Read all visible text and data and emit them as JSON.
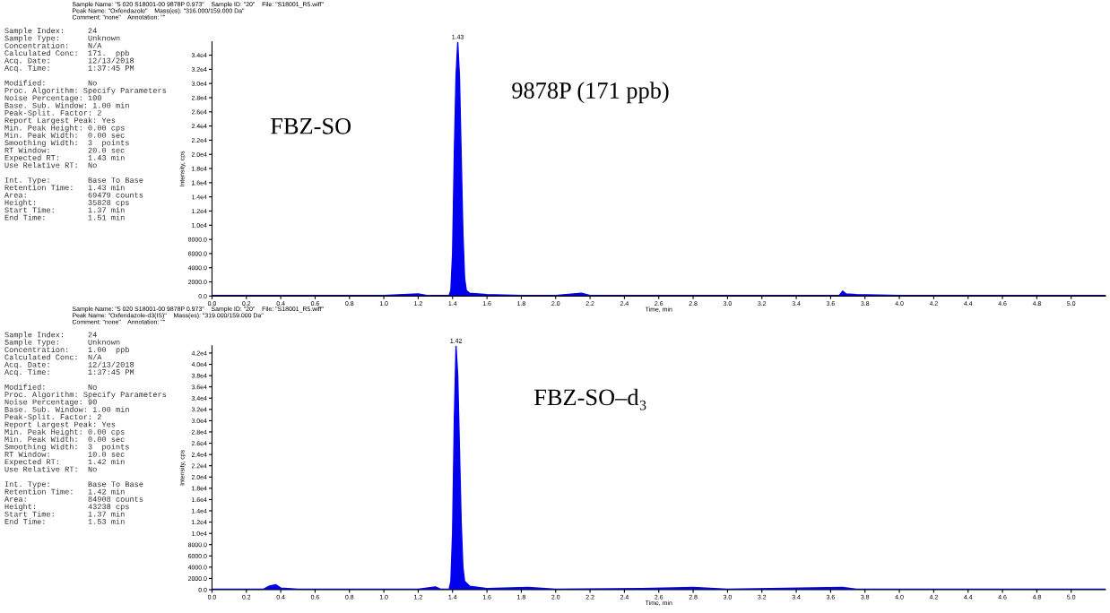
{
  "chart_data": [
    {
      "type": "area",
      "title": "Sample Name: \"5 020 S18001-00 9878P 0.973\"    Sample ID: \"20\"    File: \"S18001_R5.wiff\"\nPeak Name: \"Oxfendazole\"    Mass(es): \"316.000/159.000 Da\"\nComment: \"none\"    Annotation: \"\"",
      "xlabel": "Time, min",
      "ylabel": "Intensity, cps",
      "color": "#0000ee",
      "x": [
        0,
        0.1,
        0.2,
        0.4,
        0.6,
        0.8,
        1.0,
        1.2,
        1.25,
        1.38,
        1.39,
        1.4,
        1.41,
        1.42,
        1.43,
        1.44,
        1.45,
        1.46,
        1.47,
        1.48,
        1.5,
        1.6,
        1.8,
        2.0,
        2.15,
        2.2,
        2.5,
        3.0,
        3.5,
        3.65,
        3.67,
        3.69,
        3.75,
        4.0,
        4.5,
        5.0,
        5.2
      ],
      "values": [
        100,
        100,
        100,
        100,
        100,
        100,
        100,
        300,
        100,
        100,
        800,
        6000,
        20000,
        31000,
        35828,
        31000,
        20000,
        9000,
        2500,
        800,
        400,
        200,
        100,
        100,
        400,
        100,
        100,
        100,
        100,
        100,
        700,
        300,
        200,
        100,
        100,
        100,
        100
      ],
      "xlim": [
        0,
        5.2
      ],
      "ylim": [
        0,
        35900
      ],
      "xticks": [
        {
          "value": 0,
          "label": "0.0"
        },
        {
          "value": 0.2,
          "label": "0.2"
        },
        {
          "value": 0.4,
          "label": "0.4"
        },
        {
          "value": 0.6,
          "label": "0.6"
        },
        {
          "value": 0.8,
          "label": "0.8"
        },
        {
          "value": 1.0,
          "label": "1.0"
        },
        {
          "value": 1.2,
          "label": "1.2"
        },
        {
          "value": 1.4,
          "label": "1.4"
        },
        {
          "value": 1.6,
          "label": "1.6"
        },
        {
          "value": 1.8,
          "label": "1.8"
        },
        {
          "value": 2.0,
          "label": "2.0"
        },
        {
          "value": 2.2,
          "label": "2.2"
        },
        {
          "value": 2.4,
          "label": "2.4"
        },
        {
          "value": 2.6,
          "label": "2.6"
        },
        {
          "value": 2.8,
          "label": "2.8"
        },
        {
          "value": 3.0,
          "label": "3.0"
        },
        {
          "value": 3.2,
          "label": "3.2"
        },
        {
          "value": 3.4,
          "label": "3.4"
        },
        {
          "value": 3.6,
          "label": "3.6"
        },
        {
          "value": 3.8,
          "label": "3.8"
        },
        {
          "value": 4.0,
          "label": "4.0"
        },
        {
          "value": 4.2,
          "label": "4.2"
        },
        {
          "value": 4.4,
          "label": "4.4"
        },
        {
          "value": 4.6,
          "label": "4.6"
        },
        {
          "value": 4.8,
          "label": "4.8"
        },
        {
          "value": 5.0,
          "label": "5.0"
        }
      ],
      "yticks": [
        {
          "value": 0,
          "label": "0.0"
        },
        {
          "value": 2000,
          "label": "2000.0"
        },
        {
          "value": 4000,
          "label": "4000.0"
        },
        {
          "value": 6000,
          "label": "6000.0"
        },
        {
          "value": 8000,
          "label": "8000.0"
        },
        {
          "value": 10000,
          "label": "1.0e4"
        },
        {
          "value": 12000,
          "label": "1.2e4"
        },
        {
          "value": 14000,
          "label": "1.4e4"
        },
        {
          "value": 16000,
          "label": "1.6e4"
        },
        {
          "value": 18000,
          "label": "1.8e4"
        },
        {
          "value": 20000,
          "label": "2.0e4"
        },
        {
          "value": 22000,
          "label": "2.2e4"
        },
        {
          "value": 24000,
          "label": "2.4e4"
        },
        {
          "value": 26000,
          "label": "2.6e4"
        },
        {
          "value": 28000,
          "label": "2.8e4"
        },
        {
          "value": 30000,
          "label": "3.0e4"
        },
        {
          "value": 32000,
          "label": "3.2e4"
        },
        {
          "value": 34000,
          "label": "3.4e4"
        }
      ],
      "annotations": [
        "Sample Index:     24\nSample Type:      Unknown\nConcentration:    N/A\nCalculated Conc:  171.  ppb\nAcq. Date:        12/13/2018\nAcq. Time:        1:37:45 PM\n\nModified:         No\nProc. Algorithm: Specify Parameters\nNoise Percentage: 100\nBase. Sub. Window: 1.00 min\nPeak-Split. Factor: 2\nReport Largest Peak: Yes\nMin. Peak Height: 0.00 cps\nMin. Peak Width:  0.00 sec\nSmoothing Width:  3  points\nRT Window:        20.0 sec\nExpected RT:      1.43 min\nUse Relative RT:  No\n\nInt. Type:        Base To Base\nRetention Time:   1.43 min\nArea:             69479 counts\nHeight:           35828 cps\nStart Time:       1.37 min\nEnd Time:         1.51 min",
        "FBZ-SO",
        "9878P (171 ppb)",
        {
          "text": "1.43",
          "x": 1.43,
          "y": 35828
        }
      ]
    },
    {
      "type": "area",
      "title": "Sample Name: \"5 020 S18001-00 9878P 0.973\"    Sample ID: \"20\"    File: \"S18001_R5.wiff\"\nPeak Name: \"Oxfendazole-d3(IS)\"    Mass(es): \"319.000/159.000 Da\"\nComment: \"none\"    Annotation: \"\"",
      "xlabel": "Time, min",
      "ylabel": "Intensity, cps",
      "color": "#0000ee",
      "x": [
        0,
        0.2,
        0.3,
        0.33,
        0.37,
        0.4,
        0.5,
        0.8,
        1.2,
        1.3,
        1.33,
        1.38,
        1.39,
        1.4,
        1.41,
        1.42,
        1.43,
        1.44,
        1.45,
        1.46,
        1.47,
        1.5,
        1.6,
        1.84,
        2.0,
        2.5,
        2.8,
        3.0,
        3.67,
        3.75,
        4.0,
        4.5,
        5.0,
        5.2
      ],
      "values": [
        100,
        100,
        100,
        600,
        900,
        300,
        100,
        100,
        100,
        500,
        100,
        100,
        1500,
        10000,
        30000,
        43238,
        38000,
        25000,
        12000,
        4000,
        1500,
        600,
        200,
        400,
        100,
        200,
        400,
        100,
        400,
        100,
        100,
        100,
        100,
        100
      ],
      "xlim": [
        0,
        5.2
      ],
      "ylim": [
        0,
        43300
      ],
      "xticks": [
        {
          "value": 0,
          "label": "0.0"
        },
        {
          "value": 0.2,
          "label": "0.2"
        },
        {
          "value": 0.4,
          "label": "0.4"
        },
        {
          "value": 0.6,
          "label": "0.6"
        },
        {
          "value": 0.8,
          "label": "0.8"
        },
        {
          "value": 1.0,
          "label": "1.0"
        },
        {
          "value": 1.2,
          "label": "1.2"
        },
        {
          "value": 1.4,
          "label": "1.4"
        },
        {
          "value": 1.6,
          "label": "1.6"
        },
        {
          "value": 1.8,
          "label": "1.8"
        },
        {
          "value": 2.0,
          "label": "2.0"
        },
        {
          "value": 2.2,
          "label": "2.2"
        },
        {
          "value": 2.4,
          "label": "2.4"
        },
        {
          "value": 2.6,
          "label": "2.6"
        },
        {
          "value": 2.8,
          "label": "2.8"
        },
        {
          "value": 3.0,
          "label": "3.0"
        },
        {
          "value": 3.2,
          "label": "3.2"
        },
        {
          "value": 3.4,
          "label": "3.4"
        },
        {
          "value": 3.6,
          "label": "3.6"
        },
        {
          "value": 3.8,
          "label": "3.8"
        },
        {
          "value": 4.0,
          "label": "4.0"
        },
        {
          "value": 4.2,
          "label": "4.2"
        },
        {
          "value": 4.4,
          "label": "4.4"
        },
        {
          "value": 4.6,
          "label": "4.6"
        },
        {
          "value": 4.8,
          "label": "4.8"
        },
        {
          "value": 5.0,
          "label": "5.0"
        }
      ],
      "yticks": [
        {
          "value": 0,
          "label": "0.0"
        },
        {
          "value": 2000,
          "label": "2000.0"
        },
        {
          "value": 4000,
          "label": "4000.0"
        },
        {
          "value": 6000,
          "label": "6000.0"
        },
        {
          "value": 8000,
          "label": "8000.0"
        },
        {
          "value": 10000,
          "label": "1.0e4"
        },
        {
          "value": 12000,
          "label": "1.2e4"
        },
        {
          "value": 14000,
          "label": "1.4e4"
        },
        {
          "value": 16000,
          "label": "1.6e4"
        },
        {
          "value": 18000,
          "label": "1.8e4"
        },
        {
          "value": 20000,
          "label": "2.0e4"
        },
        {
          "value": 22000,
          "label": "2.2e4"
        },
        {
          "value": 24000,
          "label": "2.4e4"
        },
        {
          "value": 26000,
          "label": "2.6e4"
        },
        {
          "value": 28000,
          "label": "2.8e4"
        },
        {
          "value": 30000,
          "label": "3.0e4"
        },
        {
          "value": 32000,
          "label": "3.2e4"
        },
        {
          "value": 34000,
          "label": "3.4e4"
        },
        {
          "value": 36000,
          "label": "3.6e4"
        },
        {
          "value": 38000,
          "label": "3.8e4"
        },
        {
          "value": 40000,
          "label": "4.0e4"
        },
        {
          "value": 42000,
          "label": "4.2e4"
        }
      ],
      "annotations": [
        "Sample Index:     24\nSample Type:      Unknown\nConcentration:    1.00  ppb\nCalculated Conc:  N/A\nAcq. Date:        12/13/2018\nAcq. Time:        1:37:45 PM\n\nModified:         No\nProc. Algorithm: Specify Parameters\nNoise Percentage: 90\nBase. Sub. Window: 1.00 min\nPeak-Split. Factor: 2\nReport Largest Peak: Yes\nMin. Peak Height: 0.00 cps\nMin. Peak Width:  0.00 sec\nSmoothing Width:  3  points\nRT Window:        10.0 sec\nExpected RT:      1.42 min\nUse Relative RT:  No\n\nInt. Type:        Base To Base\nRetention Time:   1.42 min\nArea:             84908 counts\nHeight:           43238 cps\nStart Time:       1.37 min\nEnd Time:         1.53 min",
        "FBZ-SO–d₃",
        {
          "text": "1.42",
          "x": 1.42,
          "y": 43238
        }
      ]
    }
  ]
}
